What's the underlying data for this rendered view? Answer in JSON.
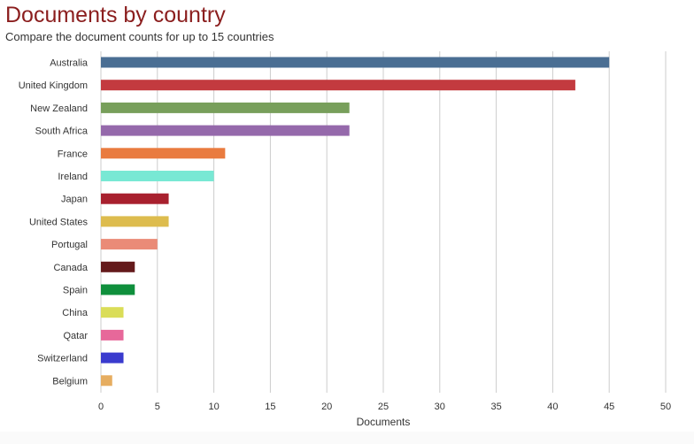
{
  "header": {
    "title": "Documents by country",
    "subtitle": "Compare the document counts for up to 15 countries"
  },
  "colors": {
    "title": "#8b1e1e",
    "grid": "#cccccc",
    "axis_text": "#333333"
  },
  "chart_data": {
    "type": "bar",
    "orientation": "horizontal",
    "categories": [
      "Australia",
      "United Kingdom",
      "New Zealand",
      "South Africa",
      "France",
      "Ireland",
      "Japan",
      "United States",
      "Portugal",
      "Canada",
      "Spain",
      "China",
      "Qatar",
      "Switzerland",
      "Belgium"
    ],
    "values": [
      45,
      42,
      22,
      22,
      11,
      10,
      6,
      6,
      5,
      3,
      3,
      2,
      2,
      2,
      1
    ],
    "bar_colors": [
      "#4a6e93",
      "#c33a3f",
      "#789f5b",
      "#9569ab",
      "#e97b3f",
      "#78e8d4",
      "#a8202e",
      "#ddbc4e",
      "#ea8b77",
      "#641a1b",
      "#0f8f3c",
      "#dadd58",
      "#e7689a",
      "#3a3bce",
      "#e6ad60"
    ],
    "xlabel": "Documents",
    "ylabel": "",
    "xlim": [
      0,
      50
    ],
    "xticks": [
      "0",
      "5",
      "10",
      "15",
      "20",
      "25",
      "30",
      "35",
      "40",
      "45",
      "50"
    ],
    "grid": true,
    "legend": "none"
  }
}
